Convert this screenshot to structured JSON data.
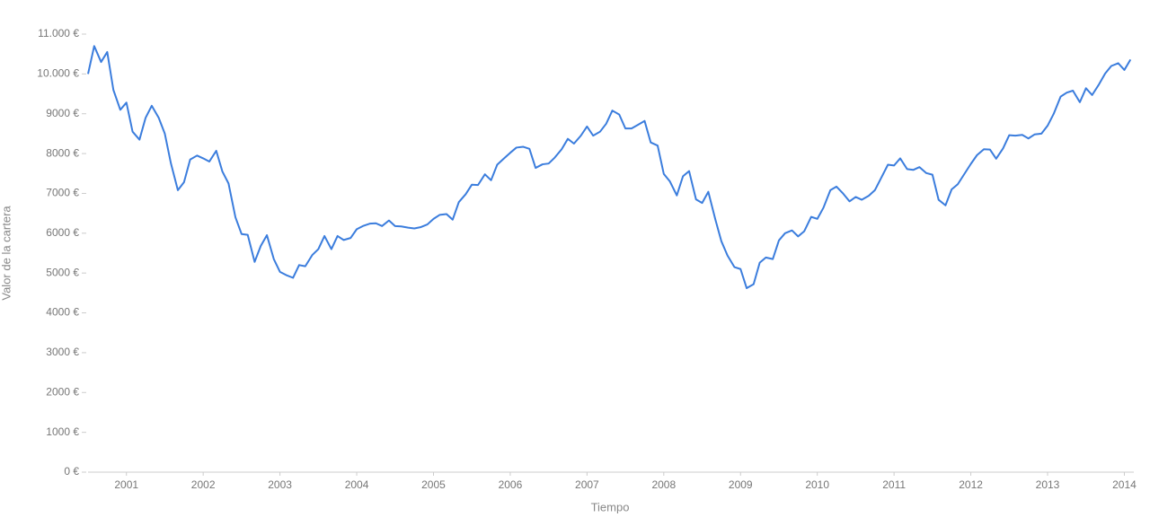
{
  "chart_data": {
    "type": "line",
    "x_label": "Tiempo",
    "y_label": "Valor de la cartera",
    "color": "#3b7ddd",
    "x": [
      2000.5,
      2000.58,
      2000.67,
      2000.75,
      2000.83,
      2000.92,
      2001,
      2001.08,
      2001.17,
      2001.25,
      2001.33,
      2001.42,
      2001.5,
      2001.58,
      2001.67,
      2001.75,
      2001.83,
      2001.92,
      2002,
      2002.08,
      2002.17,
      2002.25,
      2002.33,
      2002.42,
      2002.5,
      2002.58,
      2002.67,
      2002.75,
      2002.83,
      2002.92,
      2003,
      2003.08,
      2003.17,
      2003.25,
      2003.33,
      2003.42,
      2003.5,
      2003.58,
      2003.67,
      2003.75,
      2003.83,
      2003.92,
      2004,
      2004.08,
      2004.17,
      2004.25,
      2004.33,
      2004.42,
      2004.5,
      2004.58,
      2004.67,
      2004.75,
      2004.83,
      2004.92,
      2005,
      2005.08,
      2005.17,
      2005.25,
      2005.33,
      2005.42,
      2005.5,
      2005.58,
      2005.67,
      2005.75,
      2005.83,
      2005.92,
      2006,
      2006.08,
      2006.17,
      2006.25,
      2006.33,
      2006.42,
      2006.5,
      2006.58,
      2006.67,
      2006.75,
      2006.83,
      2006.92,
      2007,
      2007.08,
      2007.17,
      2007.25,
      2007.33,
      2007.42,
      2007.5,
      2007.58,
      2007.67,
      2007.75,
      2007.83,
      2007.92,
      2008,
      2008.08,
      2008.17,
      2008.25,
      2008.33,
      2008.42,
      2008.5,
      2008.58,
      2008.67,
      2008.75,
      2008.83,
      2008.92,
      2009,
      2009.08,
      2009.17,
      2009.25,
      2009.33,
      2009.42,
      2009.5,
      2009.58,
      2009.67,
      2009.75,
      2009.83,
      2009.92,
      2010,
      2010.08,
      2010.17,
      2010.25,
      2010.33,
      2010.42,
      2010.5,
      2010.58,
      2010.67,
      2010.75,
      2010.83,
      2010.92,
      2011,
      2011.08,
      2011.17,
      2011.25,
      2011.33,
      2011.42,
      2011.5,
      2011.58,
      2011.67,
      2011.75,
      2011.83,
      2011.92,
      2012,
      2012.08,
      2012.17,
      2012.25,
      2012.33,
      2012.42,
      2012.5,
      2012.58,
      2012.67,
      2012.75,
      2012.83,
      2012.92,
      2013,
      2013.08,
      2013.17,
      2013.25,
      2013.33,
      2013.42,
      2013.5,
      2013.58,
      2013.67,
      2013.75,
      2013.83,
      2013.92,
      2014,
      2014.08
    ],
    "values": [
      10000,
      10700,
      10300,
      10550,
      9600,
      9100,
      9280,
      8550,
      8350,
      8900,
      9200,
      8900,
      8500,
      7750,
      7080,
      7280,
      7850,
      7950,
      7880,
      7800,
      8070,
      7550,
      7250,
      6400,
      5980,
      5960,
      5280,
      5680,
      5950,
      5350,
      5030,
      4950,
      4880,
      5200,
      5170,
      5450,
      5600,
      5930,
      5600,
      5930,
      5830,
      5880,
      6100,
      6180,
      6240,
      6250,
      6180,
      6320,
      6180,
      6170,
      6140,
      6120,
      6150,
      6220,
      6360,
      6460,
      6480,
      6340,
      6780,
      6980,
      7220,
      7210,
      7480,
      7330,
      7720,
      7880,
      8020,
      8150,
      8170,
      8120,
      7640,
      7730,
      7750,
      7900,
      8110,
      8370,
      8250,
      8450,
      8680,
      8450,
      8550,
      8750,
      9080,
      8980,
      8630,
      8630,
      8730,
      8820,
      8280,
      8200,
      7490,
      7300,
      6950,
      7430,
      7560,
      6850,
      6760,
      7040,
      6360,
      5800,
      5440,
      5150,
      5100,
      4620,
      4720,
      5260,
      5390,
      5350,
      5820,
      6000,
      6070,
      5920,
      6050,
      6410,
      6360,
      6640,
      7080,
      7170,
      7010,
      6800,
      6910,
      6840,
      6940,
      7080,
      7380,
      7720,
      7700,
      7880,
      7610,
      7590,
      7660,
      7510,
      7470,
      6840,
      6700,
      7100,
      7230,
      7500,
      7740,
      7960,
      8110,
      8100,
      7870,
      8130,
      8460,
      8450,
      8470,
      8380,
      8480,
      8500,
      8700,
      9000,
      9430,
      9530,
      9580,
      9290,
      9640,
      9470,
      9740,
      10010,
      10200,
      10270,
      10100,
      10360
    ],
    "xlim": [
      2000.5,
      2014.1
    ],
    "xticks": [
      2001,
      2002,
      2003,
      2004,
      2005,
      2006,
      2007,
      2008,
      2009,
      2010,
      2011,
      2012,
      2013,
      2014
    ],
    "ylim": [
      0,
      11000
    ],
    "yticks": [
      {
        "value": 0,
        "label": "0 €"
      },
      {
        "value": 1000,
        "label": "1000 €"
      },
      {
        "value": 2000,
        "label": "2000 €"
      },
      {
        "value": 3000,
        "label": "3000 €"
      },
      {
        "value": 4000,
        "label": "4000 €"
      },
      {
        "value": 5000,
        "label": "5000 €"
      },
      {
        "value": 6000,
        "label": "6000 €"
      },
      {
        "value": 7000,
        "label": "7000 €"
      },
      {
        "value": 8000,
        "label": "8000 €"
      },
      {
        "value": 9000,
        "label": "9000 €"
      },
      {
        "value": 10000,
        "label": "10.000 €"
      },
      {
        "value": 11000,
        "label": "11.000 €"
      }
    ]
  }
}
